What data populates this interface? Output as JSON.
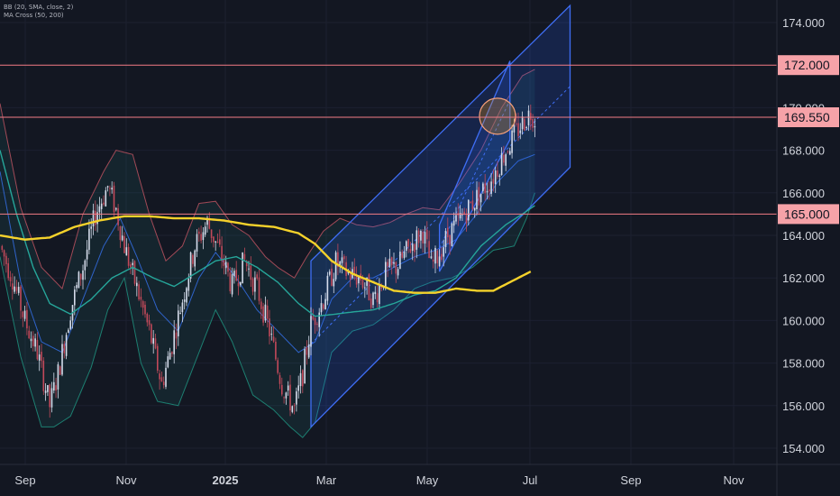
{
  "indicators": {
    "bb_label": "BB (20, SMA, close, 2)",
    "ma_label": "MA Cross (50, 200)"
  },
  "chart_data": {
    "type": "candlestick",
    "title": "",
    "y_axis_side": "right",
    "ylim": [
      153.4,
      174.8
    ],
    "y_ticks": [
      154,
      156,
      158,
      160,
      162,
      164,
      166,
      168,
      170,
      174
    ],
    "y_tick_labels": [
      "154.000",
      "156.000",
      "158.000",
      "160.000",
      "162.000",
      "164.000",
      "166.000",
      "168.000",
      "170.000",
      "174.000"
    ],
    "x_tick_labels": [
      {
        "label": "Sep",
        "bold": false
      },
      {
        "label": "Nov",
        "bold": false
      },
      {
        "label": "2025",
        "bold": true
      },
      {
        "label": "Mar",
        "bold": false
      },
      {
        "label": "May",
        "bold": false
      },
      {
        "label": "Jul",
        "bold": false
      },
      {
        "label": "Sep",
        "bold": false
      },
      {
        "label": "Nov",
        "bold": false
      }
    ],
    "horizontal_levels": [
      {
        "value": 172.0,
        "label": "172.000"
      },
      {
        "value": 169.55,
        "label": "169.550"
      },
      {
        "value": 165.0,
        "label": "165.000"
      }
    ],
    "price_anchors": [
      [
        0,
        163.5
      ],
      [
        6,
        162.0
      ],
      [
        12,
        160.0
      ],
      [
        18,
        158.5
      ],
      [
        24,
        156.0
      ],
      [
        28,
        157.5
      ],
      [
        34,
        160.5
      ],
      [
        40,
        162.5
      ],
      [
        46,
        165.0
      ],
      [
        52,
        166.3
      ],
      [
        56,
        165.2
      ],
      [
        60,
        163.5
      ],
      [
        66,
        161.5
      ],
      [
        72,
        159.5
      ],
      [
        78,
        157.0
      ],
      [
        82,
        158.5
      ],
      [
        88,
        161.0
      ],
      [
        94,
        163.5
      ],
      [
        100,
        164.6
      ],
      [
        106,
        163.2
      ],
      [
        112,
        161.6
      ],
      [
        118,
        162.8
      ],
      [
        124,
        161.5
      ],
      [
        130,
        159.5
      ],
      [
        136,
        157.0
      ],
      [
        142,
        155.8
      ],
      [
        146,
        157.5
      ],
      [
        150,
        159.8
      ],
      [
        156,
        161.0
      ],
      [
        162,
        162.7
      ],
      [
        168,
        162.2
      ],
      [
        174,
        162.0
      ],
      [
        180,
        161.0
      ],
      [
        186,
        162.2
      ],
      [
        192,
        162.6
      ],
      [
        198,
        163.5
      ],
      [
        204,
        164.2
      ],
      [
        208,
        162.5
      ],
      [
        212,
        163.2
      ],
      [
        216,
        164.0
      ],
      [
        220,
        164.5
      ],
      [
        226,
        165.3
      ],
      [
        232,
        166.0
      ],
      [
        238,
        166.8
      ],
      [
        244,
        168.0
      ],
      [
        250,
        169.0
      ],
      [
        256,
        169.8
      ],
      [
        258,
        169.5
      ]
    ],
    "bollinger_bands": {
      "upper": [
        [
          0,
          170.2
        ],
        [
          10,
          165.3
        ],
        [
          20,
          162.5
        ],
        [
          30,
          161.5
        ],
        [
          40,
          165.0
        ],
        [
          50,
          167.0
        ],
        [
          56,
          168.0
        ],
        [
          64,
          167.8
        ],
        [
          72,
          165.0
        ],
        [
          80,
          162.8
        ],
        [
          88,
          163.5
        ],
        [
          96,
          165.5
        ],
        [
          104,
          165.6
        ],
        [
          112,
          164.5
        ],
        [
          120,
          164.0
        ],
        [
          128,
          163.0
        ],
        [
          134,
          162.5
        ],
        [
          142,
          162.0
        ],
        [
          148,
          163.0
        ],
        [
          156,
          164.2
        ],
        [
          164,
          164.8
        ],
        [
          172,
          164.5
        ],
        [
          180,
          164.4
        ],
        [
          188,
          164.6
        ],
        [
          196,
          165.0
        ],
        [
          204,
          165.3
        ],
        [
          212,
          165.2
        ],
        [
          222,
          166.5
        ],
        [
          232,
          168.0
        ],
        [
          242,
          170.0
        ],
        [
          252,
          171.5
        ],
        [
          258,
          171.8
        ]
      ],
      "lower": [
        [
          0,
          163.0
        ],
        [
          10,
          158.3
        ],
        [
          20,
          155.0
        ],
        [
          26,
          155.0
        ],
        [
          34,
          155.5
        ],
        [
          44,
          157.8
        ],
        [
          52,
          160.5
        ],
        [
          60,
          162.0
        ],
        [
          68,
          158.0
        ],
        [
          76,
          156.2
        ],
        [
          86,
          156.0
        ],
        [
          96,
          158.5
        ],
        [
          104,
          160.5
        ],
        [
          112,
          159.0
        ],
        [
          122,
          156.5
        ],
        [
          132,
          155.8
        ],
        [
          140,
          155.0
        ],
        [
          146,
          154.5
        ],
        [
          152,
          155.2
        ],
        [
          160,
          158.5
        ],
        [
          170,
          159.5
        ],
        [
          180,
          159.8
        ],
        [
          190,
          160.5
        ],
        [
          200,
          161.5
        ],
        [
          208,
          161.8
        ],
        [
          218,
          162.0
        ],
        [
          228,
          162.5
        ],
        [
          238,
          163.3
        ],
        [
          248,
          163.5
        ],
        [
          254,
          164.8
        ],
        [
          258,
          166.0
        ]
      ],
      "middle": [
        [
          0,
          167.0
        ],
        [
          10,
          161.8
        ],
        [
          20,
          159.0
        ],
        [
          30,
          158.5
        ],
        [
          40,
          161.0
        ],
        [
          50,
          163.5
        ],
        [
          58,
          164.8
        ],
        [
          66,
          163.0
        ],
        [
          76,
          160.5
        ],
        [
          86,
          159.5
        ],
        [
          96,
          162.0
        ],
        [
          104,
          163.2
        ],
        [
          114,
          162.0
        ],
        [
          124,
          160.5
        ],
        [
          134,
          159.5
        ],
        [
          144,
          158.5
        ],
        [
          152,
          159.0
        ],
        [
          160,
          161.0
        ],
        [
          170,
          162.0
        ],
        [
          180,
          162.0
        ],
        [
          190,
          162.5
        ],
        [
          200,
          163.0
        ],
        [
          210,
          163.3
        ],
        [
          220,
          163.8
        ],
        [
          230,
          165.0
        ],
        [
          240,
          166.5
        ],
        [
          250,
          167.5
        ],
        [
          258,
          167.8
        ]
      ]
    },
    "ma50": [
      [
        0,
        168.0
      ],
      [
        8,
        165.0
      ],
      [
        16,
        162.5
      ],
      [
        24,
        160.8
      ],
      [
        34,
        160.3
      ],
      [
        44,
        161.0
      ],
      [
        54,
        162.0
      ],
      [
        64,
        162.5
      ],
      [
        74,
        162.0
      ],
      [
        84,
        161.6
      ],
      [
        94,
        162.2
      ],
      [
        104,
        162.8
      ],
      [
        114,
        163.0
      ],
      [
        124,
        162.5
      ],
      [
        134,
        161.8
      ],
      [
        144,
        160.8
      ],
      [
        152,
        160.2
      ],
      [
        162,
        160.3
      ],
      [
        170,
        160.4
      ],
      [
        180,
        160.5
      ],
      [
        190,
        160.8
      ],
      [
        200,
        161.2
      ],
      [
        210,
        161.4
      ],
      [
        220,
        162.0
      ],
      [
        232,
        163.5
      ],
      [
        244,
        164.5
      ],
      [
        252,
        165.0
      ],
      [
        258,
        165.4
      ]
    ],
    "ma200": [
      [
        0,
        164.0
      ],
      [
        12,
        163.8
      ],
      [
        24,
        163.9
      ],
      [
        36,
        164.4
      ],
      [
        48,
        164.7
      ],
      [
        60,
        164.9
      ],
      [
        72,
        164.9
      ],
      [
        84,
        164.8
      ],
      [
        96,
        164.8
      ],
      [
        108,
        164.7
      ],
      [
        120,
        164.5
      ],
      [
        132,
        164.4
      ],
      [
        144,
        164.1
      ],
      [
        152,
        163.6
      ],
      [
        160,
        162.8
      ],
      [
        170,
        162.2
      ],
      [
        180,
        161.8
      ],
      [
        190,
        161.4
      ],
      [
        200,
        161.3
      ],
      [
        210,
        161.3
      ],
      [
        220,
        161.5
      ],
      [
        230,
        161.4
      ],
      [
        238,
        161.4
      ],
      [
        248,
        161.9
      ],
      [
        256,
        162.3
      ]
    ],
    "channels": [
      {
        "name": "wide-channel",
        "x1": 150,
        "x2": 275,
        "lower_y1": 155.0,
        "lower_y2": 167.2,
        "upper_y1": 162.8,
        "upper_y2": 174.8
      },
      {
        "name": "inner-channel",
        "x1": 212,
        "x2": 246,
        "lower_y1": 162.3,
        "lower_y2": 168.5,
        "upper_y1": 164.5,
        "upper_y2": 172.2
      }
    ],
    "highlight_circle": {
      "x": 240,
      "y": 169.6
    }
  }
}
